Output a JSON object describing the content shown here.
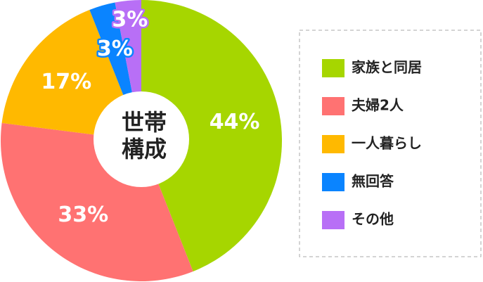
{
  "chart_data": {
    "type": "donut",
    "title": "世帯構成",
    "categories": [
      "家族と同居",
      "夫婦2人",
      "一人暮らし",
      "無回答",
      "その他"
    ],
    "values": [
      44,
      33,
      17,
      3,
      3
    ],
    "value_labels": [
      "44%",
      "33%",
      "17%",
      "3%",
      "3%"
    ],
    "colors": [
      "#a6d600",
      "#ff7272",
      "#ffb900",
      "#0a84ff",
      "#b86ff6"
    ],
    "legend": "right"
  }
}
